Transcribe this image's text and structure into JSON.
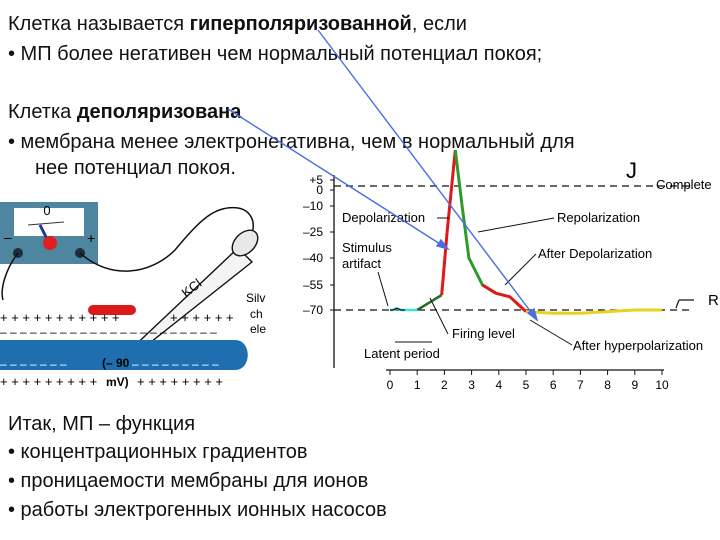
{
  "slide": {
    "line1_pre": "Клетка называется ",
    "line1_bold": "гиперполяризованной",
    "line1_post": ", если",
    "bullet1": "•  МП более негативен чем нормальный потенциал покоя;",
    "line2_pre": "Клетка ",
    "line2_bold": "деполяризована",
    "bullet2_line1": "•   мембрана менее электронегативна, чем в нормальный для",
    "bullet2_line2": "нее потенциал покоя.",
    "summary_title": "Итак, МП – функция",
    "summary_items": [
      "•  концентрационных градиентов",
      "•  проницаемости мембраны для ионов",
      "•  работы электрогенных ионных насосов"
    ]
  },
  "apparatus": {
    "meter_zero": "0",
    "meter_minus": "–",
    "meter_plus": "+",
    "electrode_label": "KCl",
    "silver_text": [
      "Silv",
      "ch",
      "ele"
    ],
    "top_charges": "+ + + + + + + + + + +",
    "top_charges_right": "+ + + + + +",
    "bottom_charges": "+ + + + + + + + +",
    "bottom_charges_right": "+ + + + + + + +",
    "minus_row": "– – – – – – – – – – – – – – – – – – – – – –",
    "minus_row_2": "– – – – – – –",
    "minus_row_2_right": "– – – – – – – – –",
    "potential_line1": "(– 90",
    "potential_line2": "mV)"
  },
  "chart": {
    "y_ticks": [
      "+5",
      "0",
      "–10",
      "–25",
      "–40",
      "–55",
      "–70"
    ],
    "x_ticks": [
      "0",
      "1",
      "2",
      "3",
      "4",
      "5",
      "6",
      "7",
      "8",
      "9",
      "10"
    ],
    "labels": {
      "complete": "Complete",
      "depolarization": "Depolarization",
      "repolarization": "Repolarization",
      "stimulus": "Stimulus",
      "artifact": "artifact",
      "after_depol": "After Depolarization",
      "firing_level": "Firing level",
      "latent_period": "Latent period",
      "after_hyper": "After hyperpolarization",
      "right_edge_r": "R",
      "top_j": "J"
    },
    "colors": {
      "rise": "#e01818",
      "fall": "#2e9a2e",
      "after_depol": "#e8a020",
      "hyper": "#e8d21e",
      "latent": "#40e0e0",
      "arrow": "#4a6ee0"
    }
  },
  "chart_data": {
    "type": "line",
    "xlabel": "",
    "ylabel": "",
    "x_ticks": [
      0,
      1,
      2,
      3,
      4,
      5,
      6,
      7,
      8,
      9,
      10
    ],
    "y_ticks": [
      5,
      0,
      -10,
      -25,
      -40,
      -55,
      -70
    ],
    "ylim": [
      -80,
      10
    ],
    "xlim": [
      0,
      10
    ],
    "series": [
      {
        "x": [
          0,
          0.1,
          0.25,
          0.4,
          0.55,
          1.0,
          1.5,
          1.9,
          2.1,
          2.4,
          2.65,
          2.9,
          3.4,
          3.9,
          4.4,
          5.0,
          6.0,
          7.0,
          8.0,
          9.0,
          10.0
        ],
        "y": [
          -70,
          -70,
          -69,
          -70,
          -70,
          -70,
          -65,
          -61,
          -25,
          20,
          -10,
          -40,
          -55,
          -60,
          -62,
          -71,
          -72,
          -72,
          -71,
          -70,
          -70
        ]
      }
    ]
  }
}
